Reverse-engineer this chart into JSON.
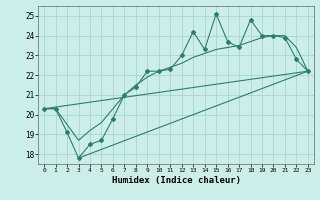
{
  "xlabel": "Humidex (Indice chaleur)",
  "bg_color": "#cceee8",
  "grid_color": "#aad4ce",
  "line_color": "#2d7d6e",
  "xlim": [
    -0.5,
    23.5
  ],
  "ylim": [
    17.5,
    25.5
  ],
  "xticks": [
    0,
    1,
    2,
    3,
    4,
    5,
    6,
    7,
    8,
    9,
    10,
    11,
    12,
    13,
    14,
    15,
    16,
    17,
    18,
    19,
    20,
    21,
    22,
    23
  ],
  "yticks": [
    18,
    19,
    20,
    21,
    22,
    23,
    24,
    25
  ],
  "main_x": [
    0,
    1,
    2,
    3,
    4,
    5,
    6,
    7,
    8,
    9,
    10,
    11,
    12,
    13,
    14,
    15,
    16,
    17,
    18,
    19,
    20,
    21,
    22,
    23
  ],
  "main_y": [
    20.3,
    20.3,
    19.1,
    17.8,
    18.5,
    18.7,
    19.8,
    21.0,
    21.4,
    22.2,
    22.2,
    22.3,
    23.0,
    24.2,
    23.3,
    25.1,
    23.7,
    23.4,
    24.8,
    24.0,
    24.0,
    23.9,
    22.8,
    22.2
  ],
  "line1_x": [
    0,
    23
  ],
  "line1_y": [
    20.3,
    22.2
  ],
  "line2_x": [
    3,
    23
  ],
  "line2_y": [
    17.8,
    22.2
  ],
  "smooth_x": [
    0,
    1,
    2,
    3,
    4,
    5,
    6,
    7,
    8,
    9,
    10,
    11,
    12,
    13,
    14,
    15,
    16,
    17,
    18,
    19,
    20,
    21,
    22,
    23
  ],
  "smooth_y": [
    20.3,
    20.3,
    19.5,
    18.7,
    19.2,
    19.6,
    20.3,
    21.0,
    21.5,
    21.9,
    22.2,
    22.4,
    22.6,
    22.9,
    23.1,
    23.3,
    23.4,
    23.5,
    23.7,
    23.9,
    24.0,
    24.0,
    23.4,
    22.2
  ]
}
